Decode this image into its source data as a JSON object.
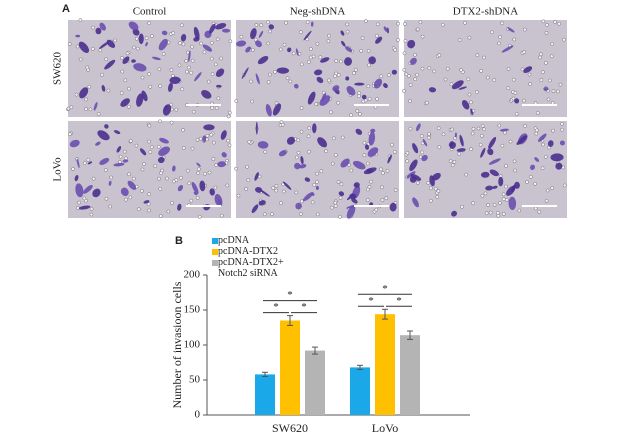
{
  "panel_a": {
    "label": "A",
    "columns": [
      "Control",
      "Neg-shDNA",
      "DTX2-shDNA"
    ],
    "rows": [
      "SW620",
      "LoVo"
    ]
  },
  "chart_data": {
    "type": "bar",
    "label": "B",
    "y_label": "Number of invasioon cells",
    "categories": [
      "SW620",
      "LoVo"
    ],
    "series": [
      {
        "name": "pcDNA",
        "color": "#1ba8e8",
        "values": [
          58,
          68
        ],
        "errors": [
          3,
          3
        ]
      },
      {
        "name": "pcDNA-DTX2",
        "color": "#ffc000",
        "values": [
          135,
          144
        ],
        "errors": [
          7,
          7
        ]
      },
      {
        "name": "pcDNA-DTX2+\nNotch2 siRNA",
        "color": "#b4b4b4",
        "values": [
          92,
          114
        ],
        "errors": [
          5,
          6
        ]
      }
    ],
    "annotations": [
      "*",
      "*",
      "*",
      "*",
      "*",
      "*"
    ],
    "ylim": [
      0,
      200
    ],
    "yticks": [
      0,
      50,
      100,
      150,
      200
    ]
  }
}
